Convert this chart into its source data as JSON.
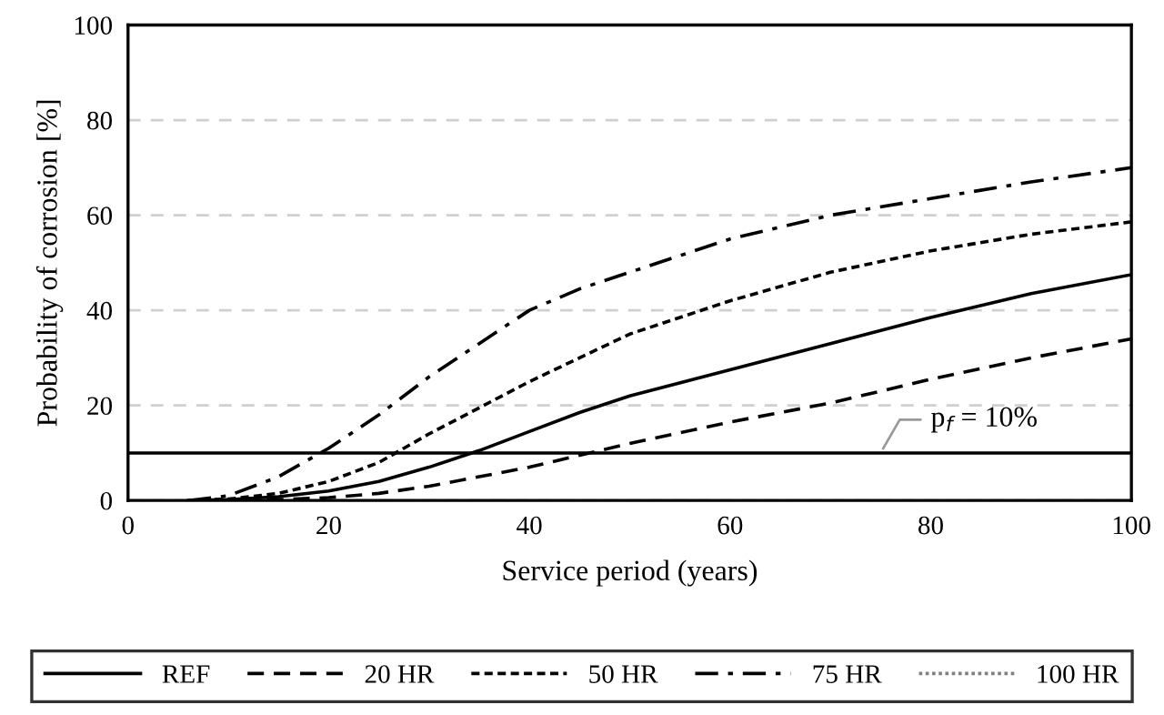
{
  "chart_data": {
    "type": "line",
    "xlabel": "Service period (years)",
    "ylabel": "Probability of corrosion [%]",
    "x": [
      6,
      10,
      15,
      20,
      25,
      30,
      35,
      40,
      45,
      50,
      60,
      70,
      80,
      90,
      100
    ],
    "xlim": [
      0,
      100
    ],
    "xticks": [
      0,
      20,
      40,
      60,
      80,
      100
    ],
    "ylim": [
      0,
      100
    ],
    "yticks": [
      0,
      20,
      40,
      60,
      80,
      100
    ],
    "grid": "y",
    "legend": "bottom",
    "marker": "none",
    "series": [
      {
        "name": "REF",
        "color": "#000000",
        "line_style": "solid",
        "values": [
          0,
          0.2,
          0.8,
          2,
          4,
          7,
          10.5,
          14.5,
          18.5,
          22,
          27.5,
          33,
          38.5,
          43.5,
          47.5
        ]
      },
      {
        "name": "20 HR",
        "color": "#000000",
        "line_style": "dashed",
        "values": [
          0,
          0,
          0.2,
          0.6,
          1.5,
          3,
          5,
          7,
          9.5,
          12,
          16.5,
          20.5,
          25.5,
          30,
          34
        ]
      },
      {
        "name": "50 HR",
        "color": "#000000",
        "line_style": "short_dashed",
        "values": [
          0,
          0.3,
          1.5,
          4,
          8,
          14,
          19.5,
          25,
          30,
          35,
          42,
          48,
          52.5,
          56,
          58.6
        ]
      },
      {
        "name": "75 HR",
        "color": "#000000",
        "line_style": "dash_dot",
        "values": [
          0,
          1,
          5,
          11,
          18,
          26,
          33,
          40,
          44.5,
          48,
          55,
          60,
          63.5,
          67,
          70
        ]
      },
      {
        "name": "100 HR",
        "color": "#808080",
        "line_style": "dotted",
        "values": [
          null,
          null,
          null,
          null,
          null,
          null,
          null,
          null,
          null,
          null,
          null,
          null,
          null,
          null,
          null
        ]
      }
    ],
    "ref_lines": [
      {
        "axis": "y",
        "value": 10,
        "label": "p$_{f}$ = 10%",
        "color": "#000000",
        "line_style": "solid"
      }
    ]
  }
}
